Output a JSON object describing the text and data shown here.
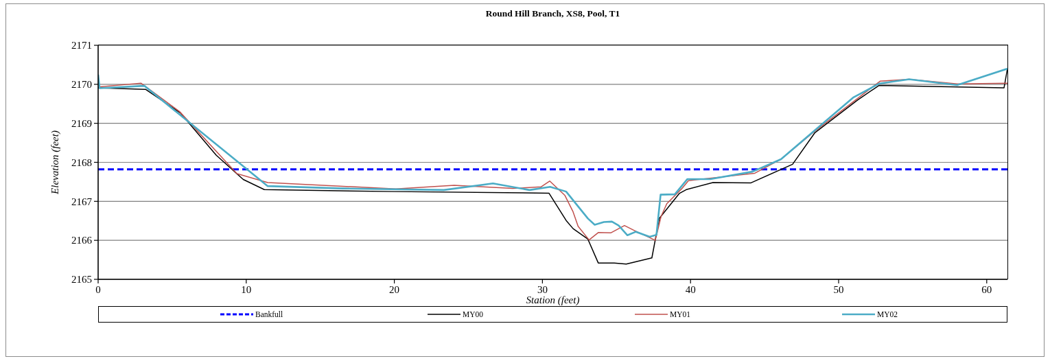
{
  "chart_data": {
    "type": "line",
    "title": "Round Hill Branch, XS8, Pool, T1",
    "xlabel": "Station (feet)",
    "ylabel": "Elevation (feet)",
    "xlim": [
      0,
      61.4
    ],
    "xticks": [
      0,
      10,
      20,
      30,
      40,
      50,
      60
    ],
    "ylim": [
      2165,
      2171
    ],
    "yticks": [
      2165,
      2166,
      2167,
      2168,
      2169,
      2170,
      2171
    ],
    "grid": "y",
    "legend": "bottom",
    "series": [
      {
        "name": "Bankfull",
        "color": "#0000ff",
        "line_style": "dashed",
        "x": [
          0,
          61.4
        ],
        "values": [
          2167.82,
          2167.82
        ]
      },
      {
        "name": "MY00",
        "color": "#000000",
        "x": [
          0,
          3.2,
          5.54,
          7.98,
          9.8,
          11.22,
          20,
          30.44,
          31.6,
          32.07,
          33.07,
          33.77,
          34.85,
          35.66,
          37.39,
          37.89,
          39.24,
          39.71,
          41.51,
          44.06,
          46.89,
          48.4,
          51.29,
          52.72,
          61.17,
          61.4
        ],
        "values": [
          2169.91,
          2169.87,
          2169.27,
          2168.18,
          2167.56,
          2167.3,
          2167.25,
          2167.21,
          2166.51,
          2166.3,
          2166.03,
          2165.42,
          2165.42,
          2165.39,
          2165.55,
          2166.56,
          2167.2,
          2167.3,
          2167.48,
          2167.47,
          2167.95,
          2168.76,
          2169.6,
          2169.97,
          2169.91,
          2170.4
        ]
      },
      {
        "name": "MY01",
        "color": "#c0504d",
        "x": [
          0,
          2.89,
          5.5,
          9.37,
          11.45,
          20.1,
          24.04,
          27.98,
          29.9,
          30.49,
          31.52,
          32.07,
          32.41,
          33.15,
          33.77,
          34.61,
          35.54,
          36.16,
          37.62,
          38.01,
          38.4,
          39.4,
          39.86,
          41.51,
          44.34,
          46.11,
          48.4,
          52.8,
          54.76,
          58,
          61.4
        ],
        "values": [
          2169.93,
          2170.03,
          2169.3,
          2167.71,
          2167.48,
          2167.32,
          2167.41,
          2167.33,
          2167.37,
          2167.52,
          2167.15,
          2166.73,
          2166.36,
          2166.01,
          2166.2,
          2166.19,
          2166.38,
          2166.26,
          2166,
          2166.61,
          2166.94,
          2167.32,
          2167.53,
          2167.6,
          2167.72,
          2168.08,
          2168.8,
          2170.08,
          2170.13,
          2170.01,
          2170.03
        ]
      },
      {
        "name": "MY02",
        "color": "#4bacc6",
        "x": [
          0,
          0.1,
          3.12,
          11.45,
          16.55,
          23.34,
          26.66,
          29.13,
          30.52,
          31.6,
          33.07,
          33.53,
          34.15,
          34.69,
          35.15,
          35.74,
          36.31,
          37.24,
          37.7,
          37.98,
          38.94,
          39.79,
          41.33,
          44.19,
          46.11,
          48.82,
          50.98,
          52.75,
          54.76,
          58,
          61.4
        ],
        "values": [
          2170.25,
          2169.9,
          2169.96,
          2167.39,
          2167.33,
          2167.29,
          2167.46,
          2167.29,
          2167.37,
          2167.25,
          2166.56,
          2166.4,
          2166.47,
          2166.48,
          2166.38,
          2166.13,
          2166.22,
          2166.09,
          2166.14,
          2167.17,
          2167.18,
          2167.57,
          2167.57,
          2167.76,
          2168.08,
          2168.96,
          2169.66,
          2170.02,
          2170.13,
          2169.98,
          2170.4
        ]
      }
    ]
  }
}
